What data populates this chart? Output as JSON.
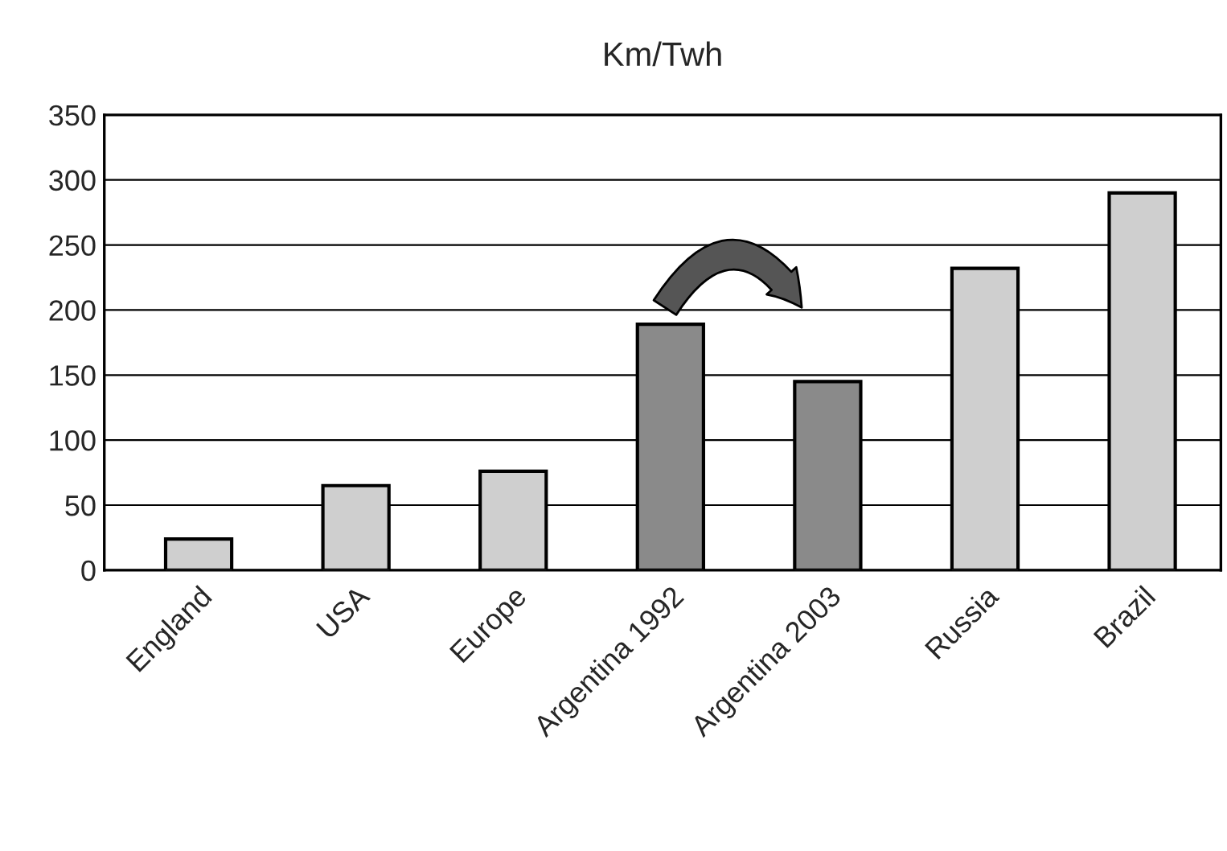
{
  "chart_data": {
    "type": "bar",
    "title": "Km/Twh",
    "categories": [
      "England",
      "USA",
      "Europe",
      "Argentina 1992",
      "Argentina 2003",
      "Russia",
      "Brazil"
    ],
    "values": [
      24,
      65,
      76,
      189,
      145,
      232,
      290
    ],
    "colors": [
      "#cfcfcf",
      "#cfcfcf",
      "#cfcfcf",
      "#8a8a8a",
      "#8a8a8a",
      "#cfcfcf",
      "#cfcfcf"
    ],
    "ylim": [
      0,
      350
    ],
    "yticks": [
      0,
      50,
      100,
      150,
      200,
      250,
      300,
      350
    ],
    "grid": "y"
  }
}
